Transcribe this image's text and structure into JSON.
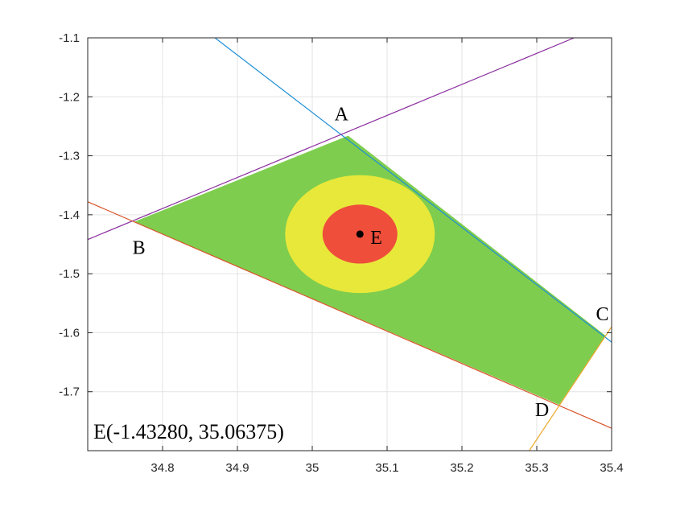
{
  "chart_data": {
    "type": "scatter",
    "title": "",
    "xlabel": "",
    "ylabel": "",
    "xlim": [
      34.7,
      35.4
    ],
    "ylim": [
      -1.8,
      -1.1
    ],
    "grid": true,
    "x_ticks": [
      34.8,
      34.9,
      35.0,
      35.1,
      35.2,
      35.3,
      35.4
    ],
    "x_tick_labels": [
      "34.8",
      "34.9",
      "35",
      "35.1",
      "35.2",
      "35.3",
      "35.4"
    ],
    "y_ticks": [
      -1.1,
      -1.2,
      -1.3,
      -1.4,
      -1.5,
      -1.6,
      -1.7
    ],
    "y_tick_labels": [
      "-1.1",
      "-1.2",
      "-1.3",
      "-1.4",
      "-1.5",
      "-1.6",
      "-1.7"
    ],
    "points": [
      {
        "label": "A",
        "x": 35.048,
        "y": -1.266
      },
      {
        "label": "B",
        "x": 34.762,
        "y": -1.412
      },
      {
        "label": "C",
        "x": 35.392,
        "y": -1.605
      },
      {
        "label": "D",
        "x": 35.33,
        "y": -1.722
      },
      {
        "label": "E",
        "x": 35.06375,
        "y": -1.4328
      }
    ],
    "polygon": {
      "vertices": [
        "A",
        "C",
        "D",
        "B"
      ],
      "color": "#7ecd4e"
    },
    "lines": [
      {
        "color": "#1f8fd6",
        "from": [
          34.87,
          -1.1
        ],
        "to": [
          35.4,
          -1.616
        ]
      },
      {
        "color": "#8a2f9e",
        "from": [
          34.7,
          -1.442
        ],
        "to": [
          35.35,
          -1.1
        ]
      },
      {
        "color": "#d9542a",
        "from": [
          34.7,
          -1.378
        ],
        "to": [
          35.4,
          -1.762
        ]
      },
      {
        "color": "#eca82a",
        "from": [
          35.29,
          -1.8
        ],
        "to": [
          35.4,
          -1.59
        ]
      }
    ],
    "circles": [
      {
        "center": "E",
        "radius_x": 0.1,
        "radius_y": 0.1,
        "color": "#e8e83a"
      },
      {
        "center": "E",
        "radius_x": 0.05,
        "radius_y": 0.05,
        "color": "#ee4e3a"
      }
    ],
    "annotation": "E(-1.43280, 35.06375)"
  }
}
